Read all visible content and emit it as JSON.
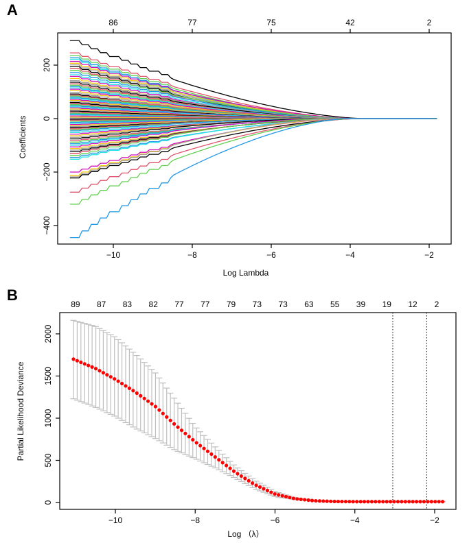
{
  "figure": {
    "panel_a_label": "A",
    "panel_b_label": "B"
  },
  "chart_data": [
    {
      "type": "line",
      "panel": "A",
      "title": "",
      "xlabel": "Log Lambda",
      "ylabel": "Coefficients",
      "xlim": [
        -11.3,
        -1.5
      ],
      "ylim": [
        -470,
        330
      ],
      "x_ticks": [
        -10,
        -8,
        -6,
        -4,
        -2
      ],
      "x_tick_labels": [
        "−10",
        "−8",
        "−6",
        "−4",
        "−2"
      ],
      "y_ticks": [
        -400,
        -200,
        0,
        200
      ],
      "y_tick_labels": [
        "−400",
        "−200",
        "0",
        "200"
      ],
      "top_axis": {
        "ticks": [
          -10,
          -8,
          -6,
          -4,
          -2
        ],
        "labels": [
          "86",
          "77",
          "75",
          "42",
          "2"
        ]
      },
      "x_range_data": [
        -11.1,
        -1.8
      ],
      "series_colors": [
        "#000000",
        "#df536b",
        "#61d04f",
        "#2297e6",
        "#28e2e5",
        "#cd0bbc",
        "#f5c710",
        "#9e9e9e"
      ],
      "series_start_values": [
        292,
        246,
        236,
        228,
        222,
        214,
        207,
        201,
        195,
        188,
        180,
        172,
        164,
        158,
        150,
        142,
        136,
        130,
        125,
        120,
        115,
        110,
        104,
        98,
        92,
        88,
        84,
        80,
        76,
        72,
        68,
        64,
        60,
        56,
        52,
        48,
        44,
        40,
        36,
        32,
        28,
        24,
        20,
        17,
        14,
        10,
        6,
        2,
        -2,
        -6,
        -10,
        -14,
        -18,
        -22,
        -26,
        -30,
        -34,
        -38,
        -42,
        -46,
        -52,
        -58,
        -64,
        -70,
        -76,
        -82,
        -88,
        -94,
        -100,
        -106,
        -112,
        -118,
        -124,
        -130,
        -138,
        -145,
        -152,
        -200,
        -212,
        -218,
        -222,
        -275,
        -320,
        -445
      ],
      "grid": false,
      "legend": "none"
    },
    {
      "type": "scatter",
      "panel": "B",
      "title": "",
      "xlabel": "Log （λ）",
      "ylabel": "Partial Likelihood Deviance",
      "xlim": [
        -11.45,
        -1.35
      ],
      "ylim": [
        -80,
        2250
      ],
      "x_ticks": [
        -10,
        -8,
        -6,
        -4,
        -2
      ],
      "x_tick_labels": [
        "−10",
        "−8",
        "−6",
        "−4",
        "−2"
      ],
      "y_ticks": [
        0,
        500,
        1000,
        1500,
        2000
      ],
      "y_tick_labels": [
        "0",
        "500",
        "1000",
        "1500",
        "2000"
      ],
      "top_axis": {
        "labels": [
          "89",
          "87",
          "83",
          "82",
          "77",
          "77",
          "79",
          "73",
          "73",
          "63",
          "55",
          "39",
          "19",
          "12",
          "2"
        ],
        "positions": [
          -11.0,
          -10.35,
          -9.7,
          -9.05,
          -8.4,
          -7.75,
          -7.1,
          -6.45,
          -5.8,
          -5.15,
          -4.5,
          -3.85,
          -3.2,
          -2.55,
          -1.95
        ]
      },
      "points": {
        "x_start": -11.05,
        "x_end": -1.8,
        "count": 100,
        "mean_at": [
          [
            -11.05,
            1700
          ],
          [
            -10.5,
            1590
          ],
          [
            -10.0,
            1460
          ],
          [
            -9.5,
            1310
          ],
          [
            -9.0,
            1140
          ],
          [
            -8.5,
            920
          ],
          [
            -8.0,
            720
          ],
          [
            -7.5,
            540
          ],
          [
            -7.0,
            360
          ],
          [
            -6.5,
            210
          ],
          [
            -6.0,
            100
          ],
          [
            -5.5,
            45
          ],
          [
            -5.0,
            20
          ],
          [
            -4.5,
            12
          ],
          [
            -4.0,
            10
          ],
          [
            -3.0,
            10
          ],
          [
            -1.8,
            10
          ]
        ],
        "upper_at": [
          [
            -11.05,
            2160
          ],
          [
            -10.5,
            2090
          ],
          [
            -10.0,
            1960
          ],
          [
            -9.5,
            1760
          ],
          [
            -9.0,
            1540
          ],
          [
            -8.5,
            1220
          ],
          [
            -8.0,
            900
          ],
          [
            -7.5,
            660
          ],
          [
            -7.0,
            430
          ],
          [
            -6.5,
            260
          ],
          [
            -6.0,
            130
          ],
          [
            -5.5,
            55
          ],
          [
            -5.0,
            25
          ],
          [
            -4.5,
            14
          ],
          [
            -4.0,
            11
          ],
          [
            -1.8,
            11
          ]
        ],
        "lower_at": [
          [
            -11.05,
            1230
          ],
          [
            -10.5,
            1130
          ],
          [
            -10.0,
            1020
          ],
          [
            -9.5,
            880
          ],
          [
            -9.0,
            760
          ],
          [
            -8.5,
            620
          ],
          [
            -8.0,
            520
          ],
          [
            -7.5,
            410
          ],
          [
            -7.0,
            290
          ],
          [
            -6.5,
            160
          ],
          [
            -6.0,
            70
          ],
          [
            -5.5,
            35
          ],
          [
            -5.0,
            15
          ],
          [
            -4.5,
            10
          ],
          [
            -4.0,
            9
          ],
          [
            -1.8,
            9
          ]
        ]
      },
      "point_color": "#ff0000",
      "errorbar_color": "#bebebe",
      "vlines": [
        -3.05,
        -2.2
      ],
      "vline_style": "dotted",
      "grid": false,
      "legend": "none"
    }
  ]
}
